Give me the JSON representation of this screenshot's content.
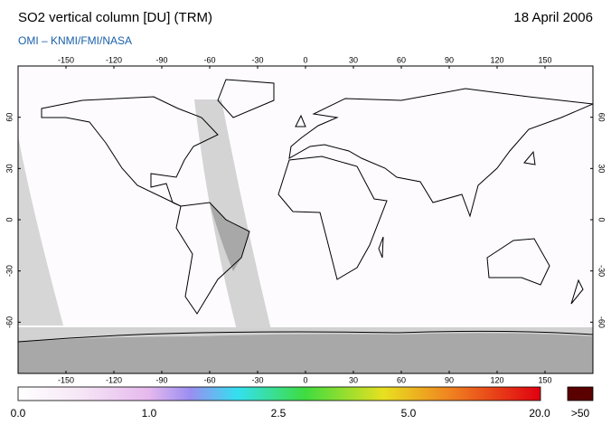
{
  "header": {
    "title": "SO2 vertical column [DU] (TRM)",
    "date": "18 April 2006",
    "subtitle": "OMI  –  KNMI/FMI/NASA"
  },
  "map": {
    "lon_ticks": [
      -150,
      -120,
      -90,
      -60,
      -30,
      0,
      30,
      60,
      90,
      120,
      150
    ],
    "lat_ticks": [
      60,
      30,
      0,
      -30,
      -60
    ]
  },
  "colorbar": {
    "labels": [
      "0.0",
      "1.0",
      "2.5",
      "5.0",
      "20.0",
      ">50"
    ]
  }
}
